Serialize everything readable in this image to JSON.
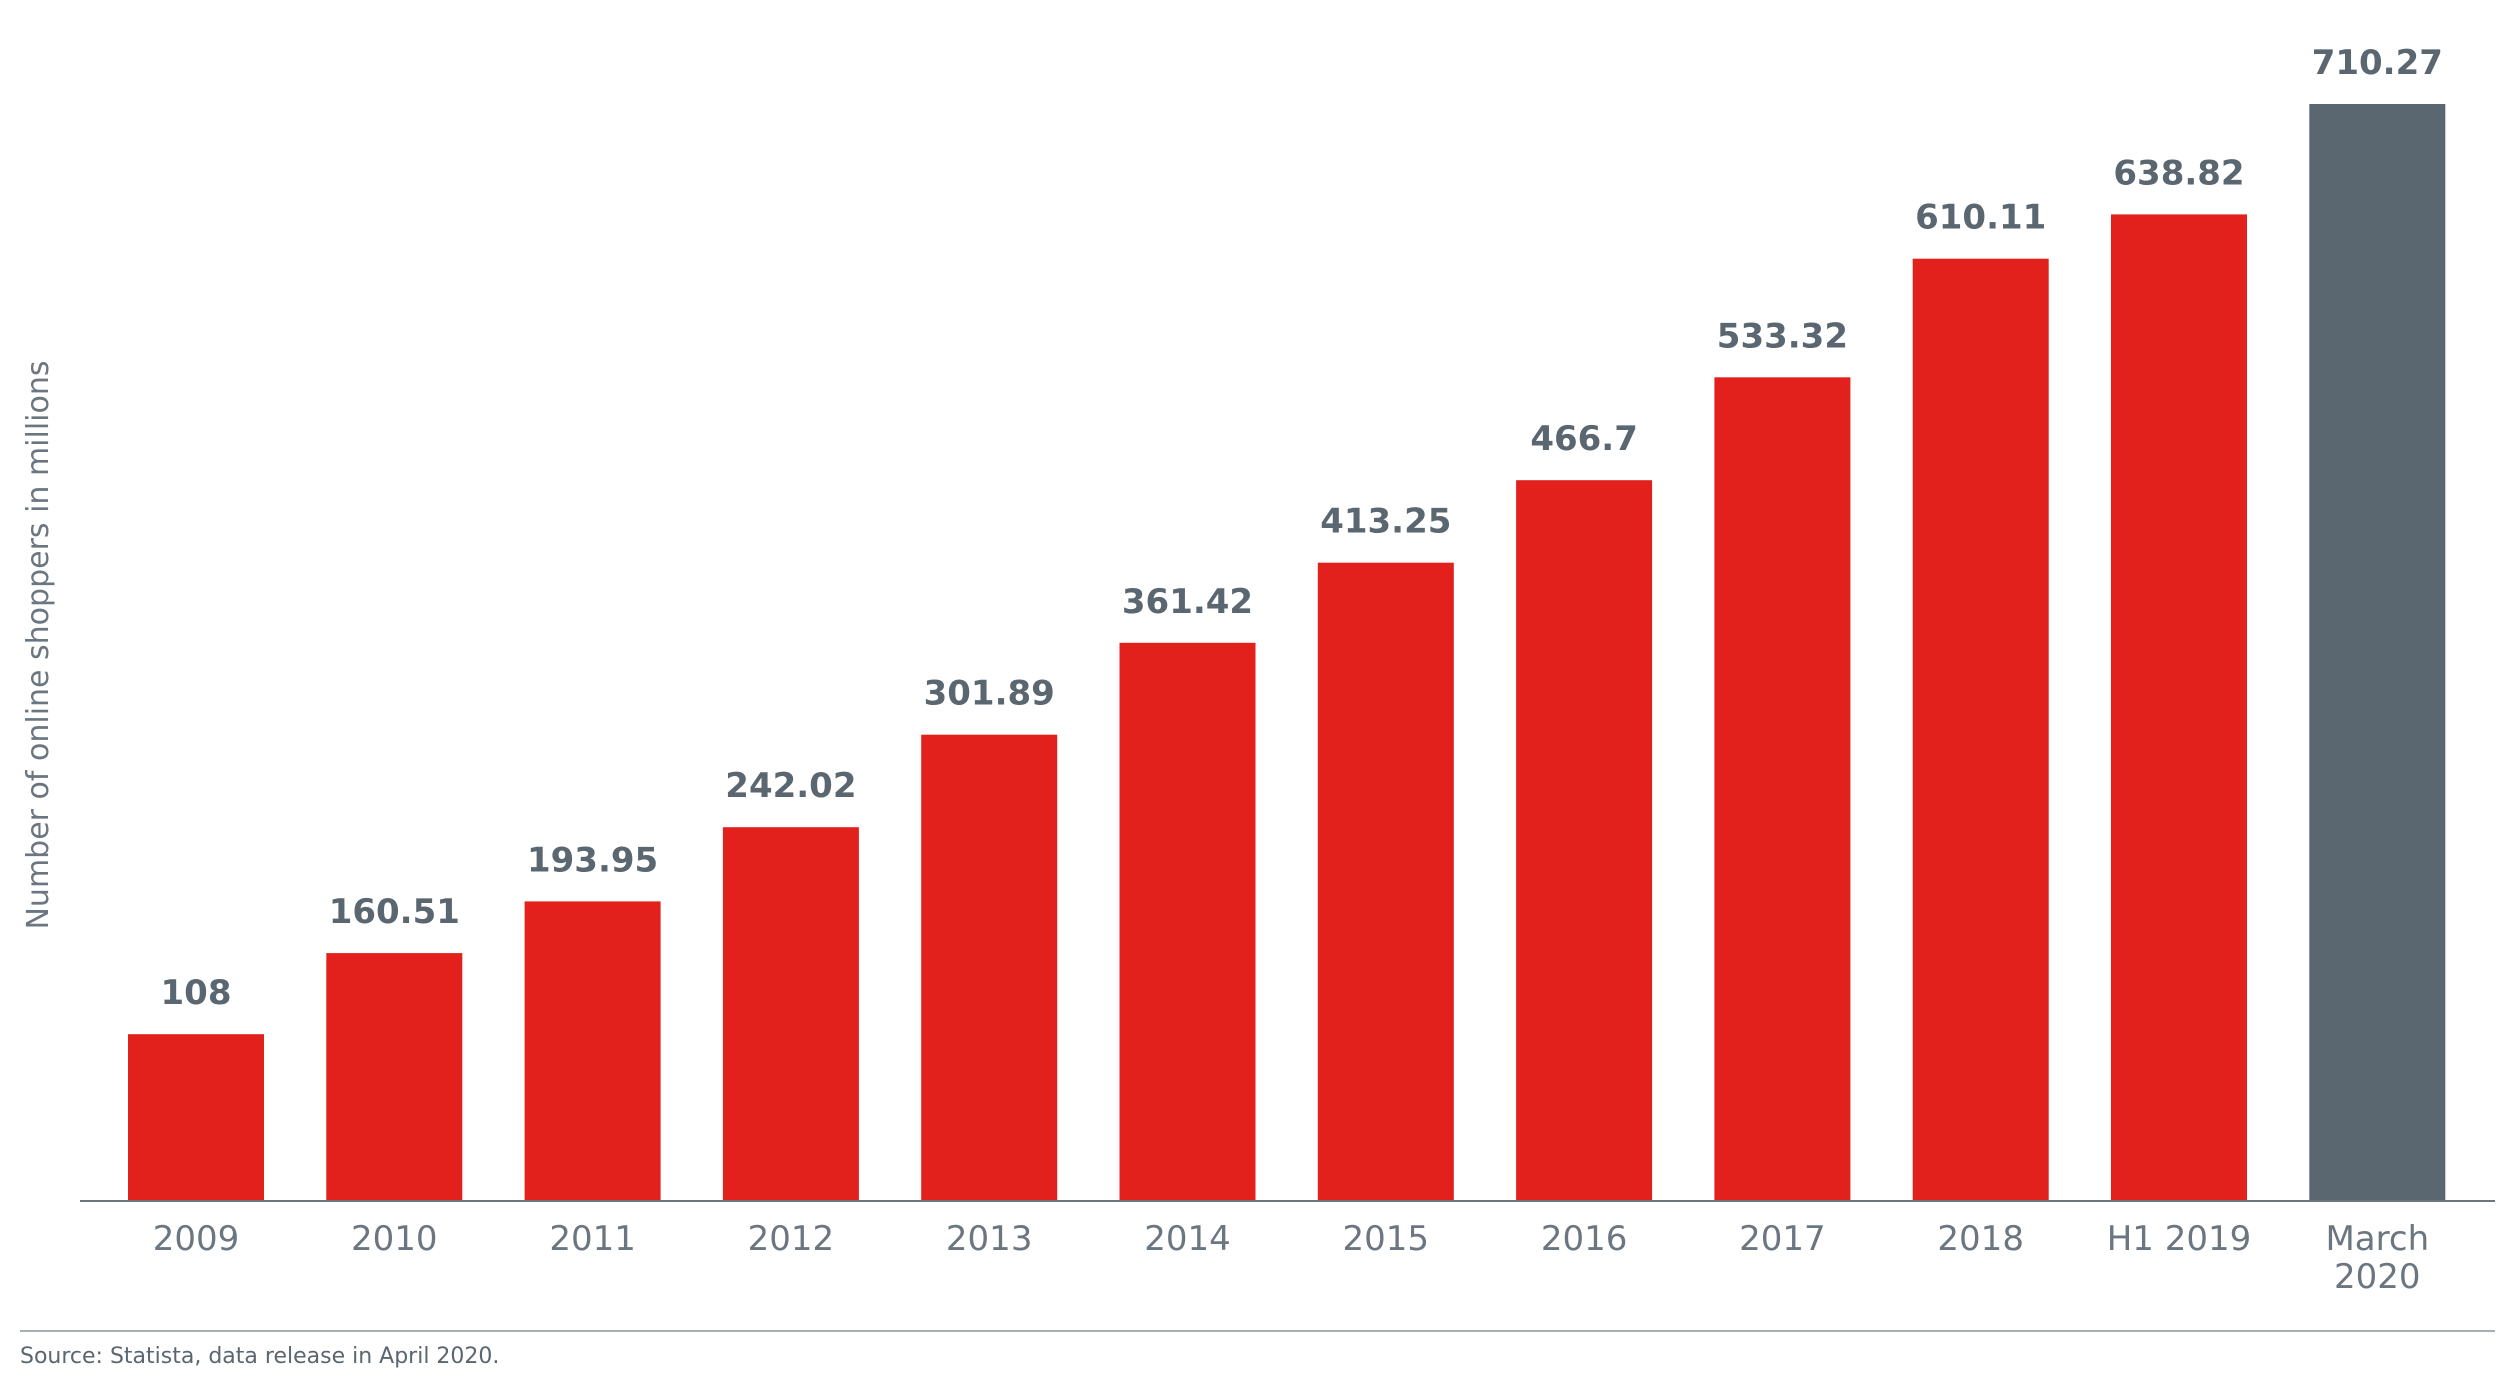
{
  "chart_data": {
    "type": "bar",
    "title": "",
    "xlabel": "",
    "ylabel": "Number of online shoppers in millions",
    "categories": [
      "2009",
      "2010",
      "2011",
      "2012",
      "2013",
      "2014",
      "2015",
      "2016",
      "2017",
      "2018",
      "H1 2019",
      "March 2020"
    ],
    "category_lines": [
      [
        "2009"
      ],
      [
        "2010"
      ],
      [
        "2011"
      ],
      [
        "2012"
      ],
      [
        "2013"
      ],
      [
        "2014"
      ],
      [
        "2015"
      ],
      [
        "2016"
      ],
      [
        "2017"
      ],
      [
        "2018"
      ],
      [
        "H1 2019"
      ],
      [
        "March",
        "2020"
      ]
    ],
    "values": [
      108,
      160.51,
      193.95,
      242.02,
      301.89,
      361.42,
      413.25,
      466.7,
      533.32,
      610.11,
      638.82,
      710.27
    ],
    "value_labels": [
      "108",
      "160.51",
      "193.95",
      "242.02",
      "301.89",
      "361.42",
      "413.25",
      "466.7",
      "533.32",
      "610.11",
      "638.82",
      "710.27"
    ],
    "colors": [
      "#e2211c",
      "#e2211c",
      "#e2211c",
      "#e2211c",
      "#e2211c",
      "#e2211c",
      "#e2211c",
      "#e2211c",
      "#e2211c",
      "#e2211c",
      "#e2211c",
      "#5a6670"
    ],
    "ylim": [
      0,
      710.27
    ],
    "grid": false,
    "legend": "none"
  },
  "source": "Source: Statista, data release in April 2020."
}
